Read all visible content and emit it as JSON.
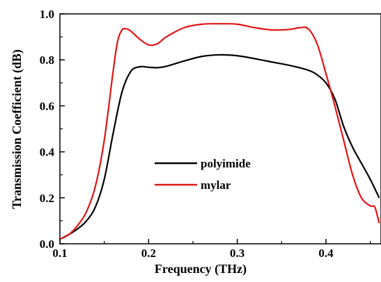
{
  "chart_data": {
    "type": "line",
    "title": "",
    "xlabel": "Frequency (THz)",
    "ylabel": "Transmission Coefficient (dB)",
    "xlim": [
      0.1,
      0.46
    ],
    "ylim": [
      0.0,
      1.0
    ],
    "xticks": [
      0.1,
      0.2,
      0.3,
      0.4
    ],
    "xtick_labels": [
      "0.1",
      "0.2",
      "0.3",
      "0.4"
    ],
    "yticks": [
      0.0,
      0.2,
      0.4,
      0.6,
      0.8,
      1.0
    ],
    "ytick_labels": [
      "0.0",
      "0.2",
      "0.4",
      "0.6",
      "0.8",
      "1.0"
    ],
    "grid": false,
    "legend_position": "center-left",
    "series": [
      {
        "name": "polyimide",
        "color": "#000000",
        "x": [
          0.1,
          0.11,
          0.12,
          0.13,
          0.14,
          0.15,
          0.16,
          0.17,
          0.18,
          0.19,
          0.2,
          0.21,
          0.22,
          0.24,
          0.26,
          0.28,
          0.3,
          0.32,
          0.34,
          0.36,
          0.38,
          0.39,
          0.4,
          0.41,
          0.42,
          0.43,
          0.44,
          0.45,
          0.46
        ],
        "y": [
          0.02,
          0.04,
          0.065,
          0.1,
          0.16,
          0.28,
          0.48,
          0.66,
          0.75,
          0.77,
          0.768,
          0.766,
          0.772,
          0.795,
          0.815,
          0.822,
          0.818,
          0.805,
          0.79,
          0.775,
          0.755,
          0.735,
          0.7,
          0.63,
          0.51,
          0.42,
          0.35,
          0.28,
          0.2
        ]
      },
      {
        "name": "mylar",
        "color": "#e01414",
        "x": [
          0.1,
          0.11,
          0.12,
          0.13,
          0.14,
          0.15,
          0.16,
          0.165,
          0.17,
          0.175,
          0.18,
          0.19,
          0.2,
          0.21,
          0.22,
          0.24,
          0.26,
          0.28,
          0.3,
          0.32,
          0.34,
          0.36,
          0.37,
          0.38,
          0.39,
          0.4,
          0.41,
          0.42,
          0.43,
          0.44,
          0.45,
          0.455,
          0.46
        ],
        "y": [
          0.02,
          0.04,
          0.08,
          0.14,
          0.25,
          0.45,
          0.75,
          0.88,
          0.93,
          0.935,
          0.925,
          0.89,
          0.865,
          0.87,
          0.9,
          0.94,
          0.955,
          0.957,
          0.955,
          0.94,
          0.93,
          0.933,
          0.94,
          0.935,
          0.87,
          0.74,
          0.6,
          0.45,
          0.3,
          0.2,
          0.165,
          0.16,
          0.09
        ]
      }
    ]
  }
}
